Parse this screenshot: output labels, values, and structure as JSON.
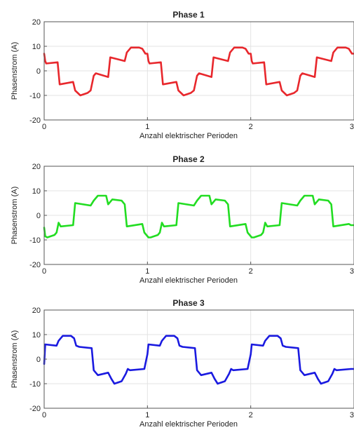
{
  "chart_data": [
    {
      "type": "line",
      "title": "Phase 1",
      "xlabel": "Anzahl elektrischer Perioden",
      "ylabel": "Phasenstrom (A)",
      "xlim": [
        0,
        3
      ],
      "ylim": [
        -20,
        20
      ],
      "xticks": [
        "0",
        "1",
        "2",
        "3"
      ],
      "yticks": [
        "20",
        "10",
        "0",
        "-10",
        "-20"
      ],
      "grid": true,
      "series": [
        {
          "color": "#e8272c",
          "x": [
            0,
            0.01,
            0.02,
            0.13,
            0.15,
            0.28,
            0.3,
            0.35,
            0.42,
            0.45,
            0.48,
            0.5,
            0.62,
            0.64,
            0.78,
            0.8,
            0.84,
            0.92,
            0.95,
            0.98,
            1.0,
            1.01,
            1.02,
            1.13,
            1.15,
            1.28,
            1.3,
            1.35,
            1.42,
            1.45,
            1.48,
            1.5,
            1.62,
            1.64,
            1.78,
            1.8,
            1.84,
            1.92,
            1.95,
            1.98,
            2.0,
            2.01,
            2.02,
            2.13,
            2.15,
            2.28,
            2.3,
            2.35,
            2.42,
            2.45,
            2.48,
            2.5,
            2.62,
            2.64,
            2.78,
            2.8,
            2.84,
            2.92,
            2.95,
            2.98,
            3.0
          ],
          "y": [
            7,
            4,
            3,
            3.5,
            -5.5,
            -4.5,
            -8,
            -10,
            -9,
            -8,
            -2,
            -1,
            -2.5,
            5.5,
            4,
            7.5,
            9.5,
            9.5,
            9,
            7,
            7,
            4,
            3,
            3.5,
            -5.5,
            -4.5,
            -8,
            -10,
            -9,
            -8,
            -2,
            -1,
            -2.5,
            5.5,
            4,
            7.5,
            9.5,
            9.5,
            9,
            7,
            7,
            4,
            3,
            3.5,
            -5.5,
            -4.5,
            -8,
            -10,
            -9,
            -8,
            -2,
            -1,
            -2.5,
            5.5,
            4,
            7.5,
            9.5,
            9.5,
            9,
            7,
            7
          ]
        }
      ]
    },
    {
      "type": "line",
      "title": "Phase 2",
      "xlabel": "Anzahl elektrischer Perioden",
      "ylabel": "Phasenstrom (A)",
      "xlim": [
        0,
        3
      ],
      "ylim": [
        -20,
        20
      ],
      "xticks": [
        "0",
        "1",
        "2",
        "3"
      ],
      "yticks": [
        "20",
        "10",
        "0",
        "-10",
        "-20"
      ],
      "grid": true,
      "series": [
        {
          "color": "#22dd22",
          "x": [
            0,
            0.01,
            0.03,
            0.1,
            0.12,
            0.14,
            0.16,
            0.28,
            0.3,
            0.45,
            0.48,
            0.52,
            0.6,
            0.62,
            0.66,
            0.75,
            0.78,
            0.8,
            0.95,
            0.97,
            1.01,
            1.03,
            1.1,
            1.12,
            1.14,
            1.16,
            1.28,
            1.3,
            1.45,
            1.48,
            1.52,
            1.6,
            1.62,
            1.66,
            1.75,
            1.78,
            1.8,
            1.95,
            1.97,
            2.01,
            2.03,
            2.1,
            2.12,
            2.14,
            2.16,
            2.28,
            2.3,
            2.45,
            2.48,
            2.52,
            2.6,
            2.62,
            2.66,
            2.75,
            2.78,
            2.8,
            2.95,
            2.97,
            3.0
          ],
          "y": [
            -5,
            -8.5,
            -9,
            -8,
            -7,
            -3,
            -4.5,
            -4,
            5,
            4,
            6,
            8,
            8,
            4.5,
            6.5,
            6,
            4.5,
            -4.5,
            -3.5,
            -7,
            -9,
            -9,
            -8,
            -7,
            -3,
            -4.5,
            -4,
            5,
            4,
            6,
            8,
            8,
            4.5,
            6.5,
            6,
            4.5,
            -4.5,
            -3.5,
            -7,
            -9,
            -9,
            -8,
            -7,
            -3,
            -4.5,
            -4,
            5,
            4,
            6,
            8,
            8,
            4.5,
            6.5,
            6,
            4.5,
            -4.5,
            -3.5,
            -4,
            -4
          ]
        }
      ]
    },
    {
      "type": "line",
      "title": "Phase 3",
      "xlabel": "Anzahl elektrischer Perioden",
      "ylabel": "Phasenstrom (A)",
      "xlim": [
        0,
        3
      ],
      "ylim": [
        -20,
        20
      ],
      "xticks": [
        "0",
        "1",
        "2",
        "3"
      ],
      "yticks": [
        "20",
        "10",
        "0",
        "-10",
        "-20"
      ],
      "grid": true,
      "series": [
        {
          "color": "#1a1ae0",
          "x": [
            0,
            0.01,
            0.12,
            0.14,
            0.18,
            0.26,
            0.29,
            0.31,
            0.34,
            0.46,
            0.48,
            0.52,
            0.62,
            0.65,
            0.68,
            0.75,
            0.79,
            0.81,
            0.83,
            0.97,
            1.0,
            1.01,
            1.12,
            1.14,
            1.18,
            1.26,
            1.29,
            1.31,
            1.34,
            1.46,
            1.48,
            1.52,
            1.62,
            1.65,
            1.68,
            1.75,
            1.79,
            1.81,
            1.83,
            1.97,
            2.0,
            2.01,
            2.12,
            2.14,
            2.18,
            2.26,
            2.29,
            2.31,
            2.34,
            2.46,
            2.48,
            2.52,
            2.62,
            2.65,
            2.68,
            2.75,
            2.79,
            2.81,
            2.83,
            2.97,
            3.0
          ],
          "y": [
            -2,
            6,
            5.5,
            7.5,
            9.5,
            9.5,
            8.5,
            5.5,
            5,
            4.5,
            -4.5,
            -6.5,
            -5.5,
            -8,
            -10,
            -9,
            -6,
            -4,
            -4.5,
            -4,
            2,
            6,
            5.5,
            7.5,
            9.5,
            9.5,
            8.5,
            5.5,
            5,
            4.5,
            -4.5,
            -6.5,
            -5.5,
            -8,
            -10,
            -9,
            -6,
            -4,
            -4.5,
            -4,
            2,
            6,
            5.5,
            7.5,
            9.5,
            9.5,
            8.5,
            5.5,
            5,
            4.5,
            -4.5,
            -6.5,
            -5.5,
            -8,
            -10,
            -9,
            -6,
            -4,
            -4.5,
            -4,
            -4
          ]
        }
      ]
    }
  ]
}
